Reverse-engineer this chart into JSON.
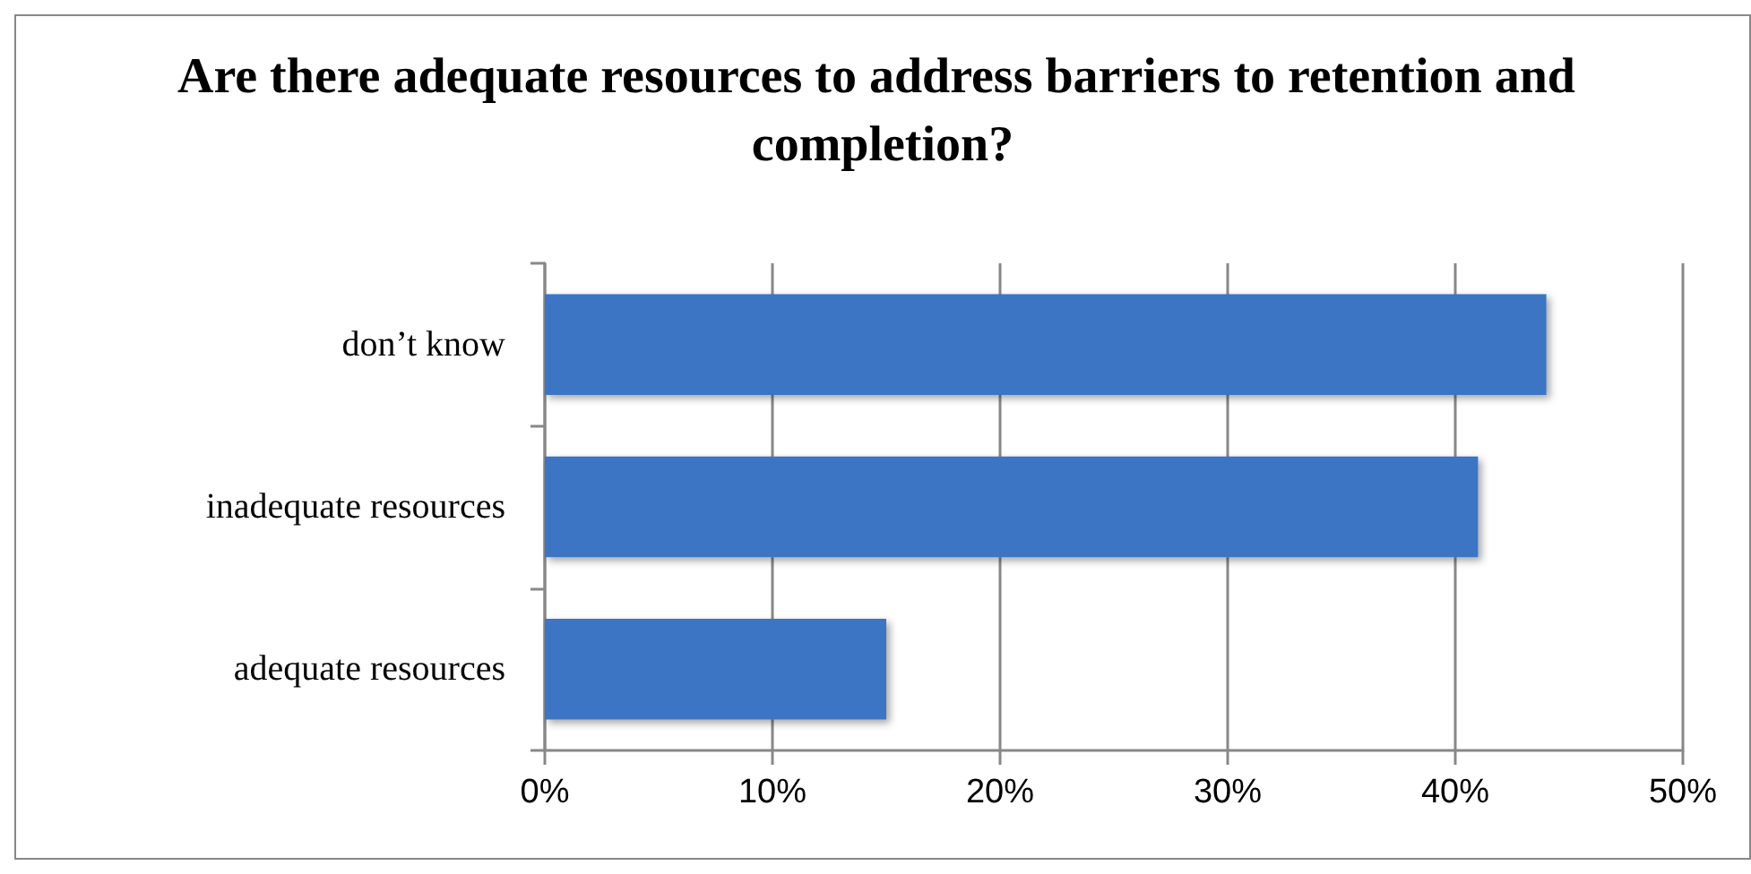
{
  "chart_data": {
    "type": "bar",
    "orientation": "horizontal",
    "title": "Are there adequate resources to address barriers to retention and completion?",
    "categories": [
      "don’t know",
      "inadequate resources",
      "adequate resources"
    ],
    "values": [
      44,
      41,
      15
    ],
    "color": "#3a74c4",
    "xlim": [
      0,
      50
    ],
    "xticks": [
      {
        "value": 0,
        "label": "0%"
      },
      {
        "value": 10,
        "label": "10%"
      },
      {
        "value": 20,
        "label": "20%"
      },
      {
        "value": 30,
        "label": "30%"
      },
      {
        "value": 40,
        "label": "40%"
      },
      {
        "value": 50,
        "label": "50%"
      }
    ],
    "grid": "x"
  }
}
